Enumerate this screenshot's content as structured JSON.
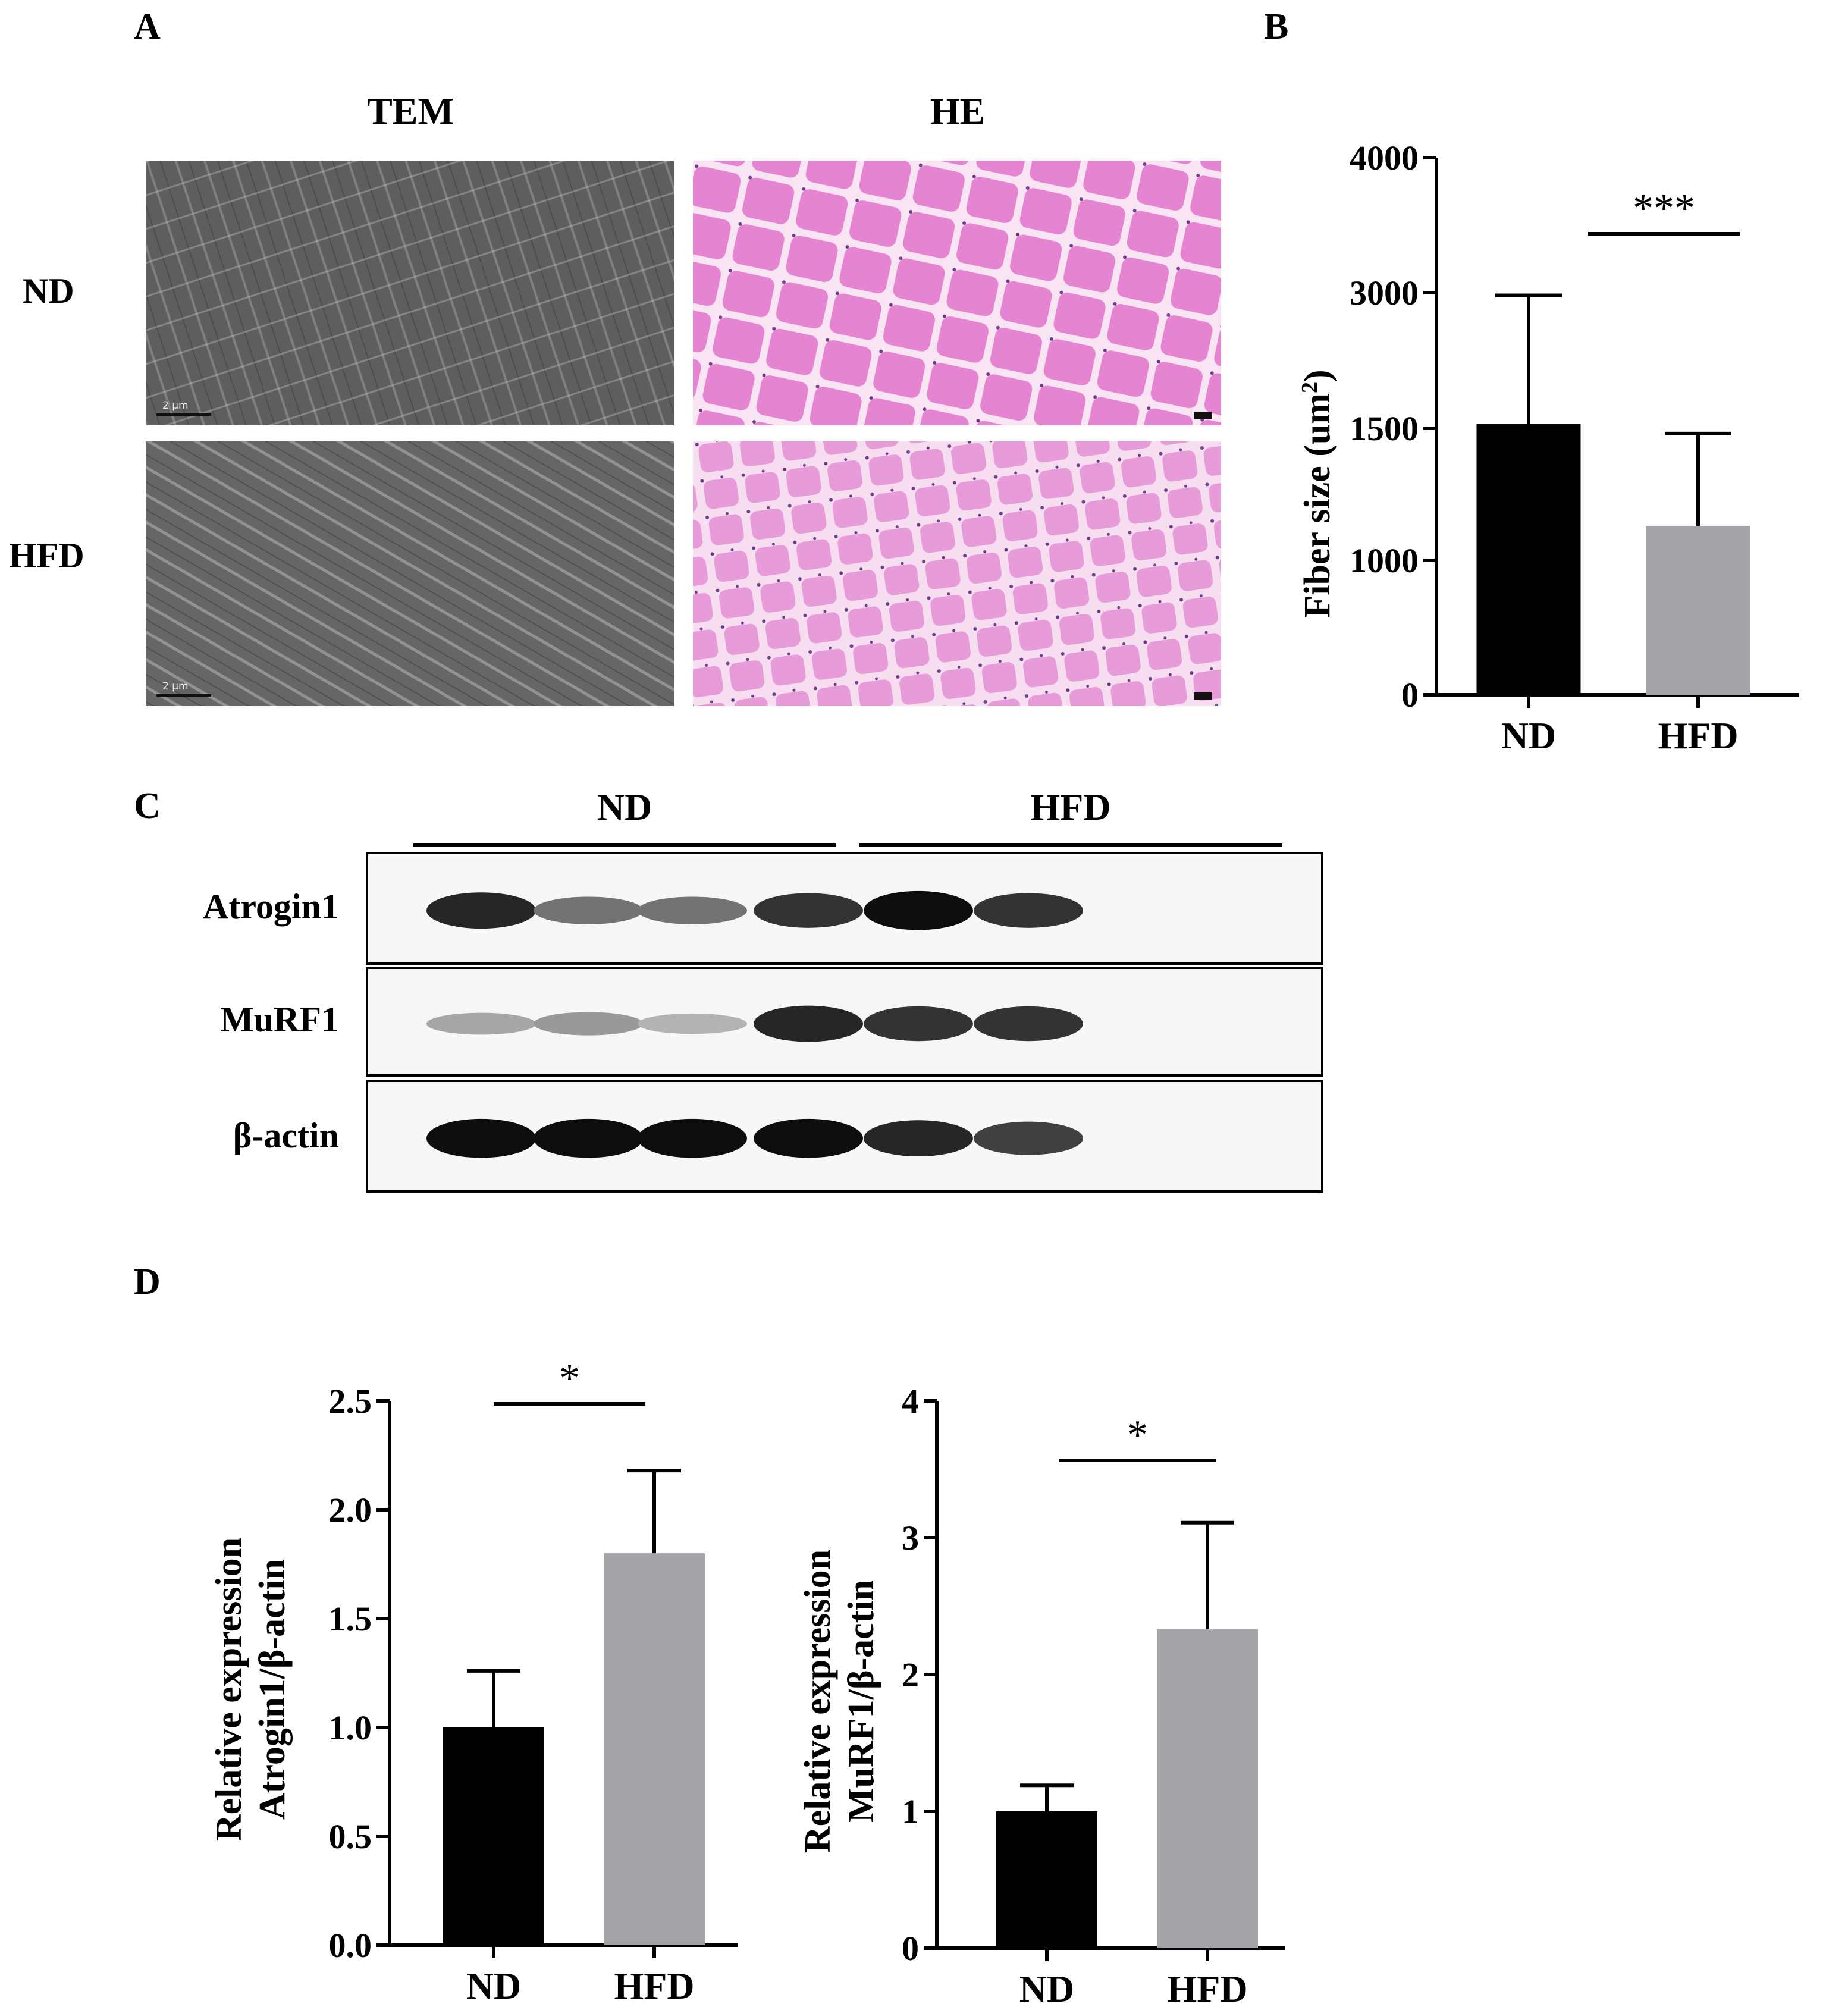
{
  "panels": {
    "a": "A",
    "b": "B",
    "c": "C",
    "d": "D"
  },
  "panel_a": {
    "col_tem": "TEM",
    "col_he": "HE",
    "row_nd": "ND",
    "row_hfd": "HFD",
    "scale_label": "2 μm"
  },
  "panel_c": {
    "groups": [
      "ND",
      "HFD"
    ],
    "rows": [
      "Atrogin1",
      "MuRF1",
      "β-actin"
    ],
    "band_intensity": {
      "Atrogin1": [
        0.85,
        0.55,
        0.55,
        0.8,
        0.95,
        0.8
      ],
      "MuRF1": [
        0.35,
        0.4,
        0.3,
        0.85,
        0.8,
        0.8
      ],
      "β-actin": [
        0.95,
        0.95,
        0.95,
        0.95,
        0.85,
        0.75
      ]
    }
  },
  "chart_data": [
    {
      "type": "bar",
      "panel": "B",
      "categories": [
        "ND",
        "HFD"
      ],
      "values": [
        1550,
        1130
      ],
      "error_upper": [
        2970,
        1480
      ],
      "colors": [
        "#000000",
        "#a3a3a8"
      ],
      "ylabel_main": "Fiber size (um",
      "ylabel_sup": "2",
      "ylabel_end": ")",
      "yticks": [
        "0",
        "1000",
        "1500",
        "3000",
        "4000"
      ],
      "significance": "***"
    },
    {
      "type": "bar",
      "panel": "D-left",
      "categories": [
        "ND",
        "HFD"
      ],
      "values": [
        1.0,
        1.8
      ],
      "error_upper": [
        1.26,
        2.18
      ],
      "colors": [
        "#000000",
        "#a3a3a8"
      ],
      "ylabel_line1": "Relative expression",
      "ylabel_line2": "Atrogin1/β-actin",
      "ylim": [
        0,
        2.5
      ],
      "yticks": [
        "0.0",
        "0.5",
        "1.0",
        "1.5",
        "2.0",
        "2.5"
      ],
      "significance": "*"
    },
    {
      "type": "bar",
      "panel": "D-right",
      "categories": [
        "ND",
        "HFD"
      ],
      "values": [
        1.0,
        2.33
      ],
      "error_upper": [
        1.19,
        3.11
      ],
      "colors": [
        "#000000",
        "#a3a3a8"
      ],
      "ylabel_line1": "Relative expression",
      "ylabel_line2": "MuRF1/β-actin",
      "ylim": [
        0,
        4
      ],
      "yticks": [
        "0",
        "1",
        "2",
        "3",
        "4"
      ],
      "significance": "*"
    }
  ]
}
